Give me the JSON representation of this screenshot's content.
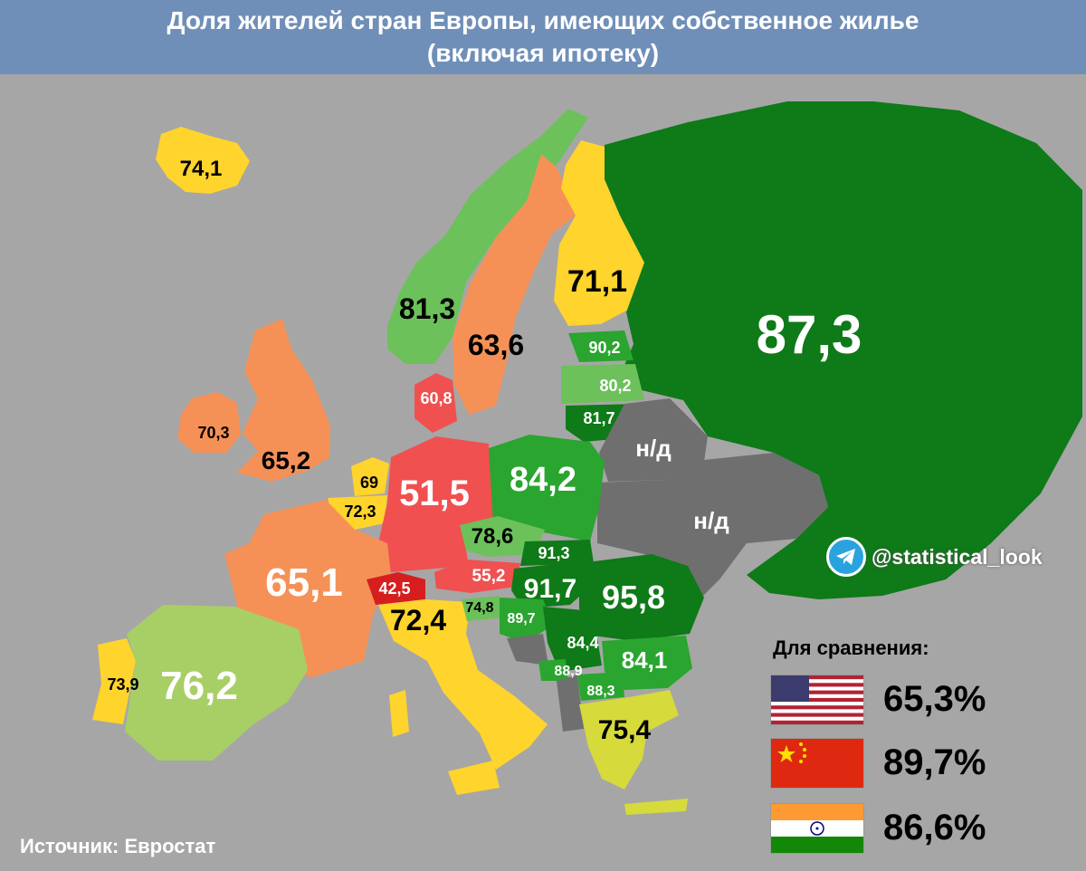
{
  "title": {
    "line1": "Доля жителей стран Европы, имеющих собственное жилье",
    "line2": "(включая ипотеку)"
  },
  "source": "Источник: Евростат",
  "telegram": {
    "icon": "telegram-icon",
    "handle": "@statistical_look"
  },
  "comparison": {
    "title": "Для сравнения:",
    "items": [
      {
        "flag": "usa-flag-icon",
        "value": "65,3%"
      },
      {
        "flag": "china-flag-icon",
        "value": "89,7%"
      },
      {
        "flag": "india-flag-icon",
        "value": "86,6%"
      }
    ]
  },
  "countries": {
    "iceland": "74,1",
    "norway": "81,3",
    "sweden": "63,6",
    "finland": "71,1",
    "russia": "87,3",
    "estonia": "90,2",
    "latvia": "80,2",
    "lithuania": "81,7",
    "belarus": "н/д",
    "ukraine": "н/д",
    "ireland": "70,3",
    "uk": "65,2",
    "denmark": "60,8",
    "netherlands": "69",
    "belgium": "72,3",
    "germany": "51,5",
    "poland": "84,2",
    "czechia": "78,6",
    "slovakia": "91,3",
    "austria": "55,2",
    "hungary": "91,7",
    "romania": "95,8",
    "france": "65,1",
    "switzerland": "42,5",
    "slovenia": "74,8",
    "croatia": "89,7",
    "italy": "72,4",
    "serbia": "84,4",
    "bulgaria": "84,1",
    "montenegro": "88,9",
    "north_macedonia": "88,3",
    "greece": "75,4",
    "portugal": "73,9",
    "spain": "76,2"
  },
  "colors": {
    "background": "#a6a6a6",
    "title_bar": "#6f8fb8",
    "dark_green": "#0e7a18",
    "green": "#2aa52f",
    "light_green": "#6cc15a",
    "yellow": "#ffd42c",
    "orange": "#f59157",
    "red": "#f05050",
    "no_data": "#6f6f6f"
  }
}
